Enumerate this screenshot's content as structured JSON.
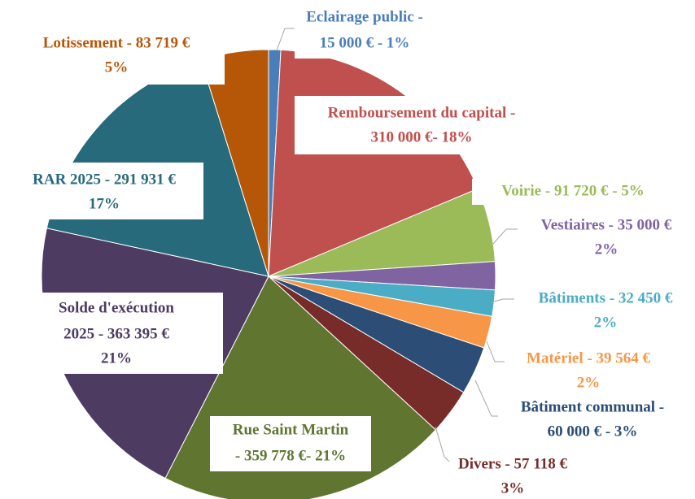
{
  "chart_data": {
    "type": "pie",
    "categories": [
      null,
      null,
      null,
      null,
      null,
      null,
      null,
      null,
      null,
      null,
      null,
      null
    ],
    "values": [
      15000,
      310000,
      91720,
      35000,
      32450,
      39564,
      60000,
      57118,
      359778,
      363395,
      291931,
      83719
    ],
    "value_labels": [
      [
        "Eclairage public -",
        "15 000 € - 1%"
      ],
      [
        "Remboursement du capital -",
        "310 000 €- 18%"
      ],
      [
        "Voirie - 91 720 € - 5%"
      ],
      [
        "Vestiaires - 35 000 €",
        "2%"
      ],
      [
        "Bâtiments - 32 450 €",
        "2%"
      ],
      [
        "Matériel - 39 564 €",
        "2%"
      ],
      [
        "Bâtiment communal -",
        "60 000 € - 3%"
      ],
      [
        "Divers - 57 118 €",
        "3%"
      ],
      [
        "Rue Saint Martin",
        "- 359 778 €- 21%"
      ],
      [
        "Solde d'exécution",
        "2025 - 363 395  €",
        "21%"
      ],
      [
        "RAR 2025 - 291 931 €",
        "17%"
      ],
      [
        "Lotissement - 83 719 €",
        "5%"
      ]
    ],
    "colors": [
      "#4a7ebb",
      "#c0504d",
      "#9bbb59",
      "#8064a2",
      "#4bacc6",
      "#f79646",
      "#2c4d75",
      "#772c2a",
      "#5f7530",
      "#4d3b62",
      "#276a7c",
      "#b65708"
    ]
  }
}
